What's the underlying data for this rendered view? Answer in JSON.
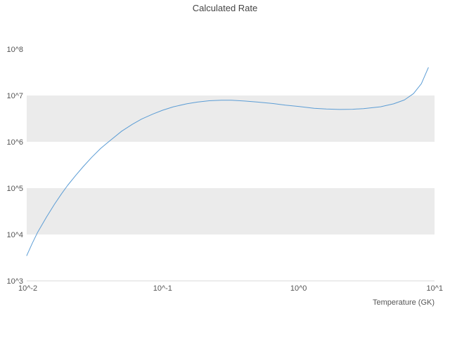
{
  "title": "Calculated Rate",
  "chart_data": {
    "type": "line",
    "title": "Calculated Rate",
    "xlabel": "Temperature (GK)",
    "ylabel": "",
    "x_scale": "log",
    "y_scale": "log",
    "xlim": [
      0.01,
      10
    ],
    "ylim": [
      1000,
      100000000
    ],
    "grid": false,
    "legend": "none",
    "x_ticks": [
      {
        "value": 0.01,
        "label": "10^-2"
      },
      {
        "value": 0.1,
        "label": "10^-1"
      },
      {
        "value": 1,
        "label": "10^0"
      },
      {
        "value": 10,
        "label": "10^1"
      }
    ],
    "y_ticks": [
      {
        "value": 1000,
        "label": "10^3"
      },
      {
        "value": 10000,
        "label": "10^4"
      },
      {
        "value": 100000,
        "label": "10^5"
      },
      {
        "value": 1000000,
        "label": "10^6"
      },
      {
        "value": 10000000,
        "label": "10^7"
      },
      {
        "value": 100000000,
        "label": "10^8"
      }
    ],
    "bands": [
      {
        "from": 1000000,
        "to": 10000000
      },
      {
        "from": 10000,
        "to": 100000
      }
    ],
    "band_color": "#ebebeb",
    "axis_line_color": "#d9d9d9",
    "line_color": "#5c9dd5",
    "line_width": 1,
    "series": [
      {
        "name": "Calculated Rate",
        "x": [
          0.01,
          0.011,
          0.012,
          0.014,
          0.016,
          0.018,
          0.02,
          0.023,
          0.026,
          0.03,
          0.035,
          0.04,
          0.05,
          0.06,
          0.07,
          0.085,
          0.1,
          0.12,
          0.15,
          0.18,
          0.22,
          0.27,
          0.32,
          0.4,
          0.5,
          0.65,
          0.8,
          1.0,
          1.3,
          1.6,
          2.0,
          2.5,
          3.0,
          4.0,
          5.0,
          6.0,
          7.0,
          8.0,
          9.0
        ],
        "y": [
          3500,
          6500,
          11000,
          24000,
          45000,
          75000,
          115000,
          190000,
          290000,
          460000,
          720000,
          1000000,
          1700000,
          2400000,
          3100000,
          4000000,
          4800000,
          5700000,
          6600000,
          7200000,
          7700000,
          7900000,
          7900000,
          7600000,
          7200000,
          6700000,
          6200000,
          5800000,
          5300000,
          5100000,
          5000000,
          5050000,
          5200000,
          5700000,
          6600000,
          8000000,
          11000000,
          18000000,
          40000000
        ]
      }
    ]
  }
}
